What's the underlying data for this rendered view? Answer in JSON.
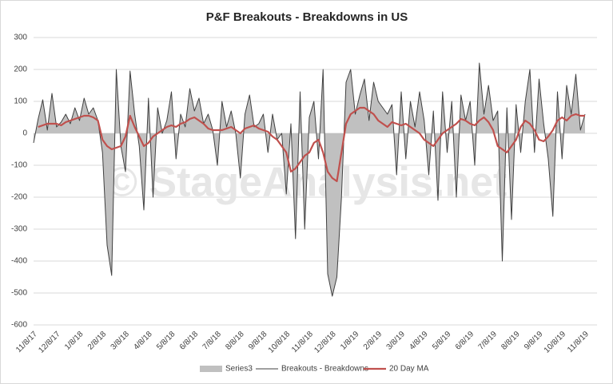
{
  "chart_data": {
    "type": "line",
    "title": "P&F Breakouts - Breakdowns in US",
    "watermark": "© StageAnalysis.net",
    "categories": [
      "11/8/17",
      null,
      null,
      null,
      null,
      "12/8/17",
      null,
      null,
      null,
      null,
      "1/8/18",
      null,
      null,
      null,
      null,
      "2/8/18",
      null,
      null,
      null,
      null,
      "3/8/18",
      null,
      null,
      null,
      null,
      "4/8/18",
      null,
      null,
      null,
      null,
      "5/8/18",
      null,
      null,
      null,
      null,
      "6/8/18",
      null,
      null,
      null,
      null,
      "7/8/18",
      null,
      null,
      null,
      null,
      "8/8/18",
      null,
      null,
      null,
      null,
      "9/8/18",
      null,
      null,
      null,
      null,
      "10/8/18",
      null,
      null,
      null,
      null,
      "11/8/18",
      null,
      null,
      null,
      null,
      "12/8/18",
      null,
      null,
      null,
      null,
      "1/8/19",
      null,
      null,
      null,
      null,
      "2/8/19",
      null,
      null,
      null,
      null,
      "3/8/19",
      null,
      null,
      null,
      null,
      "4/8/19",
      null,
      null,
      null,
      null,
      "5/8/19",
      null,
      null,
      null,
      null,
      "6/8/19",
      null,
      null,
      null,
      null,
      "7/8/19",
      null,
      null,
      null,
      null,
      "8/8/19",
      null,
      null,
      null,
      null,
      "9/8/19",
      null,
      null,
      null,
      null,
      "10/8/19",
      null,
      null,
      null,
      null,
      "11/8/19"
    ],
    "series": [
      {
        "name": "Series3",
        "kind": "area",
        "color": "#c0c0c0",
        "values": [
          -30,
          45,
          105,
          10,
          125,
          20,
          35,
          60,
          30,
          80,
          40,
          110,
          60,
          80,
          40,
          -60,
          -350,
          -445,
          200,
          -40,
          -120,
          195,
          60,
          -40,
          -240,
          110,
          -200,
          80,
          0,
          40,
          130,
          -80,
          60,
          20,
          140,
          70,
          110,
          30,
          60,
          10,
          -100,
          100,
          20,
          70,
          0,
          -140,
          60,
          120,
          20,
          30,
          60,
          -60,
          60,
          -20,
          0,
          -190,
          30,
          -330,
          130,
          -300,
          50,
          100,
          -80,
          200,
          -440,
          -510,
          -450,
          -200,
          160,
          200,
          60,
          120,
          170,
          40,
          160,
          100,
          80,
          60,
          90,
          -130,
          130,
          -80,
          100,
          20,
          130,
          40,
          -130,
          70,
          -210,
          130,
          -60,
          100,
          -200,
          120,
          40,
          100,
          -100,
          220,
          60,
          150,
          40,
          70,
          -400,
          80,
          -270,
          90,
          -60,
          100,
          200,
          -60,
          170,
          30,
          -80,
          -260,
          130,
          -80,
          150,
          60,
          185,
          10,
          60
        ]
      },
      {
        "name": "Breakouts - Breakdowns",
        "kind": "line",
        "color": "#404040",
        "width": 1,
        "values": [
          -30,
          45,
          105,
          10,
          125,
          20,
          35,
          60,
          30,
          80,
          40,
          110,
          60,
          80,
          40,
          -60,
          -350,
          -445,
          200,
          -40,
          -120,
          195,
          60,
          -40,
          -240,
          110,
          -200,
          80,
          0,
          40,
          130,
          -80,
          60,
          20,
          140,
          70,
          110,
          30,
          60,
          10,
          -100,
          100,
          20,
          70,
          0,
          -140,
          60,
          120,
          20,
          30,
          60,
          -60,
          60,
          -20,
          0,
          -190,
          30,
          -330,
          130,
          -300,
          50,
          100,
          -80,
          200,
          -440,
          -510,
          -450,
          -200,
          160,
          200,
          60,
          120,
          170,
          40,
          160,
          100,
          80,
          60,
          90,
          -130,
          130,
          -80,
          100,
          20,
          130,
          40,
          -130,
          70,
          -210,
          130,
          -60,
          100,
          -200,
          120,
          40,
          100,
          -100,
          220,
          60,
          150,
          40,
          70,
          -400,
          80,
          -270,
          90,
          -60,
          100,
          200,
          -60,
          170,
          30,
          -80,
          -260,
          130,
          -80,
          150,
          60,
          185,
          10,
          60
        ]
      },
      {
        "name": "20 Day MA",
        "kind": "line",
        "color": "#c0504d",
        "width": 2.2,
        "values": [
          null,
          20,
          25,
          30,
          30,
          30,
          25,
          35,
          40,
          45,
          50,
          55,
          55,
          50,
          40,
          -20,
          -40,
          -50,
          -45,
          -40,
          -10,
          55,
          20,
          -10,
          -40,
          -30,
          -10,
          0,
          10,
          20,
          25,
          20,
          30,
          35,
          45,
          50,
          40,
          30,
          15,
          10,
          10,
          10,
          15,
          20,
          10,
          0,
          15,
          20,
          25,
          15,
          10,
          5,
          -10,
          -20,
          -40,
          -60,
          -120,
          -110,
          -90,
          -70,
          -60,
          -30,
          -20,
          -60,
          -120,
          -140,
          -150,
          -60,
          30,
          60,
          70,
          80,
          80,
          70,
          60,
          40,
          30,
          20,
          35,
          30,
          25,
          30,
          20,
          10,
          0,
          -20,
          -30,
          -40,
          -20,
          0,
          10,
          20,
          30,
          45,
          40,
          30,
          25,
          40,
          50,
          35,
          10,
          -40,
          -50,
          -60,
          -40,
          -20,
          20,
          40,
          30,
          10,
          -20,
          -25,
          -10,
          10,
          40,
          50,
          40,
          55,
          60,
          55,
          55
        ]
      }
    ],
    "ylim": [
      -600,
      300
    ],
    "yticks": [
      -600,
      -500,
      -400,
      -300,
      -200,
      -100,
      0,
      100,
      200,
      300
    ],
    "grid": true
  }
}
